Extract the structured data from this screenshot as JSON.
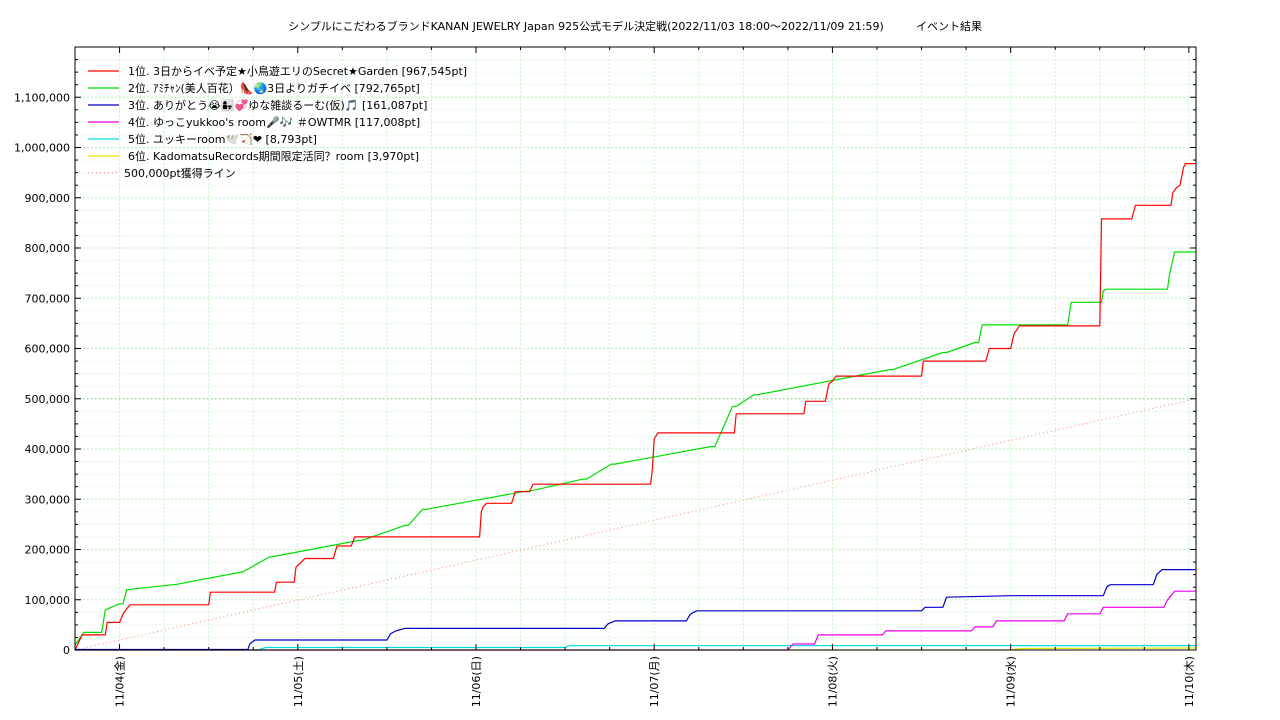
{
  "chart_data": {
    "type": "line",
    "title": "シンプルにこだわるブランドKANAN JEWELRY Japan 925公式モデル決定戦(2022/11/03 18:00～2022/11/09 21:59)",
    "subtitle": "イベント結果",
    "xlabel": "",
    "ylabel": "",
    "ylim": [
      0,
      1200000
    ],
    "y_ticks": [
      {
        "v": 0,
        "label": "0"
      },
      {
        "v": 100000,
        "label": "100,000"
      },
      {
        "v": 200000,
        "label": "200,000"
      },
      {
        "v": 300000,
        "label": "300,000"
      },
      {
        "v": 400000,
        "label": "400,000"
      },
      {
        "v": 500000,
        "label": "500,000"
      },
      {
        "v": 600000,
        "label": "600,000"
      },
      {
        "v": 700000,
        "label": "700,000"
      },
      {
        "v": 800000,
        "label": "800,000"
      },
      {
        "v": 900000,
        "label": "900,000"
      },
      {
        "v": 1000000,
        "label": "1,000,000"
      },
      {
        "v": 1100000,
        "label": "1,100,000"
      }
    ],
    "xlim": [
      -0.25,
      6.04
    ],
    "x_ticks": [
      {
        "v": 0,
        "label": "11/04(金)"
      },
      {
        "v": 1,
        "label": "11/05(土)"
      },
      {
        "v": 2,
        "label": "11/06(日)"
      },
      {
        "v": 3,
        "label": "11/07(月)"
      },
      {
        "v": 4,
        "label": "11/08(火)"
      },
      {
        "v": 5,
        "label": "11/09(水)"
      },
      {
        "v": 6,
        "label": "11/10(木)"
      }
    ],
    "grid": true,
    "legend_position": "top-left",
    "series": [
      {
        "name": "1位. 3日からイベ予定★小鳥遊エリのSecret★Garden [967,545pt]",
        "color": "#ff0000",
        "x": [
          -0.25,
          -0.21,
          -0.2,
          -0.08,
          -0.07,
          0.0,
          0.02,
          0.04,
          0.06,
          0.5,
          0.51,
          0.87,
          0.88,
          0.98,
          0.99,
          1.02,
          1.04,
          1.2,
          1.22,
          1.3,
          1.32,
          1.4,
          1.42,
          1.56,
          1.58,
          2.02,
          2.03,
          2.04,
          2.06,
          2.2,
          2.22,
          2.3,
          2.32,
          2.44,
          2.46,
          2.98,
          2.99,
          3.0,
          3.02,
          3.45,
          3.46,
          3.84,
          3.85,
          3.96,
          3.98,
          4.0,
          4.02,
          4.5,
          4.51,
          4.86,
          4.88,
          5.0,
          5.02,
          5.04,
          5.05,
          5.5,
          5.51,
          5.52,
          5.54,
          5.68,
          5.7,
          5.9,
          5.91,
          5.93,
          5.95,
          5.97,
          5.98,
          6.04
        ],
        "values": [
          0,
          30000,
          30000,
          30000,
          55000,
          55000,
          72000,
          82000,
          90000,
          90000,
          115000,
          115000,
          135000,
          135000,
          165000,
          175000,
          182000,
          182000,
          207000,
          207000,
          225000,
          225000,
          225000,
          225000,
          225000,
          225000,
          275000,
          285000,
          292000,
          292000,
          315000,
          315000,
          330000,
          330000,
          330000,
          330000,
          360000,
          420000,
          432000,
          432000,
          470000,
          470000,
          495000,
          495000,
          530000,
          535000,
          545000,
          545000,
          575000,
          575000,
          600000,
          600000,
          630000,
          640000,
          645000,
          645000,
          858000,
          858000,
          858000,
          858000,
          885000,
          885000,
          910000,
          920000,
          925000,
          960000,
          968000,
          968000
        ]
      },
      {
        "name": "2位. ｱﾐﾁｬﾝ(美人百花）👠🌏3日よりガチイベ [792,765pt]",
        "color": "#00dd00",
        "x": [
          -0.25,
          -0.22,
          -0.2,
          -0.1,
          -0.08,
          0.0,
          0.01,
          0.02,
          0.04,
          0.3,
          0.31,
          0.68,
          0.69,
          0.84,
          0.85,
          1.34,
          1.36,
          1.6,
          1.62,
          1.7,
          1.72,
          2.28,
          2.3,
          2.6,
          2.62,
          2.76,
          2.78,
          3.32,
          3.34,
          3.44,
          3.46,
          3.56,
          3.58,
          4.32,
          4.34,
          4.62,
          4.64,
          4.8,
          4.82,
          4.84,
          5.32,
          5.34,
          5.5,
          5.51,
          5.52,
          5.54,
          5.88,
          5.89,
          5.9,
          5.92,
          6.04
        ],
        "values": [
          10000,
          25000,
          35000,
          35000,
          80000,
          92000,
          92000,
          92000,
          120000,
          130000,
          130000,
          155000,
          155000,
          185000,
          185000,
          218000,
          218000,
          248000,
          248000,
          280000,
          280000,
          316000,
          316000,
          340000,
          340000,
          370000,
          370000,
          405000,
          405000,
          485000,
          485000,
          508000,
          508000,
          558000,
          558000,
          592000,
          592000,
          612000,
          612000,
          647000,
          647000,
          692000,
          692000,
          692000,
          715000,
          718000,
          718000,
          745000,
          760000,
          792000,
          792000
        ]
      },
      {
        "name": "3位. ありがとう😭👩‍👧💞ゆな雑談るーむ(仮)🎵 [161,087pt]",
        "color": "#0000cc",
        "x": [
          -0.25,
          0.72,
          0.73,
          0.76,
          1.02,
          1.5,
          1.52,
          1.55,
          1.6,
          2.72,
          2.74,
          2.78,
          3.18,
          3.2,
          3.22,
          3.24,
          4.5,
          4.52,
          4.62,
          4.64,
          5.0,
          5.52,
          5.54,
          5.56,
          5.8,
          5.82,
          5.85,
          6.04
        ],
        "values": [
          1000,
          1000,
          12000,
          20000,
          20000,
          20000,
          32000,
          38000,
          43000,
          43000,
          52000,
          58000,
          58000,
          70000,
          75000,
          78000,
          78000,
          85000,
          85000,
          105000,
          108000,
          108000,
          126000,
          130000,
          130000,
          150000,
          160000,
          160000
        ]
      },
      {
        "name": "4位. ゆっこyukkoo's room🎤🎶 ＃OWTMR [117,008pt]",
        "color": "#ee00ee",
        "x": [
          -0.25,
          3.75,
          3.78,
          3.9,
          3.92,
          4.28,
          4.3,
          4.78,
          4.8,
          4.9,
          4.92,
          5.3,
          5.32,
          5.5,
          5.52,
          5.86,
          5.88,
          5.9,
          5.92,
          6.04
        ],
        "values": [
          0,
          0,
          12000,
          12000,
          30000,
          30000,
          38000,
          38000,
          46000,
          46000,
          58000,
          58000,
          72000,
          72000,
          85000,
          85000,
          100000,
          108000,
          117000,
          117000
        ]
      },
      {
        "name": "5位. ユッキーroom🕊️🏹❤︎ [8,793pt]",
        "color": "#00dddd",
        "x": [
          -0.25,
          0.78,
          0.82,
          2.5,
          2.52,
          6.04
        ],
        "values": [
          0,
          0,
          5000,
          5000,
          8500,
          8800
        ]
      },
      {
        "name": "6位. KadomatsuRecords期間限定活同？room [3,970pt]",
        "color": "#e6e600",
        "x": [
          -0.25,
          5.0,
          5.05,
          6.04
        ],
        "values": [
          0,
          0,
          3000,
          3970
        ]
      }
    ],
    "reference_line": {
      "name": "500,000pt獲得ライン",
      "color": "#ff8080",
      "x": [
        -0.25,
        6.04
      ],
      "values": [
        0,
        500000
      ]
    }
  }
}
